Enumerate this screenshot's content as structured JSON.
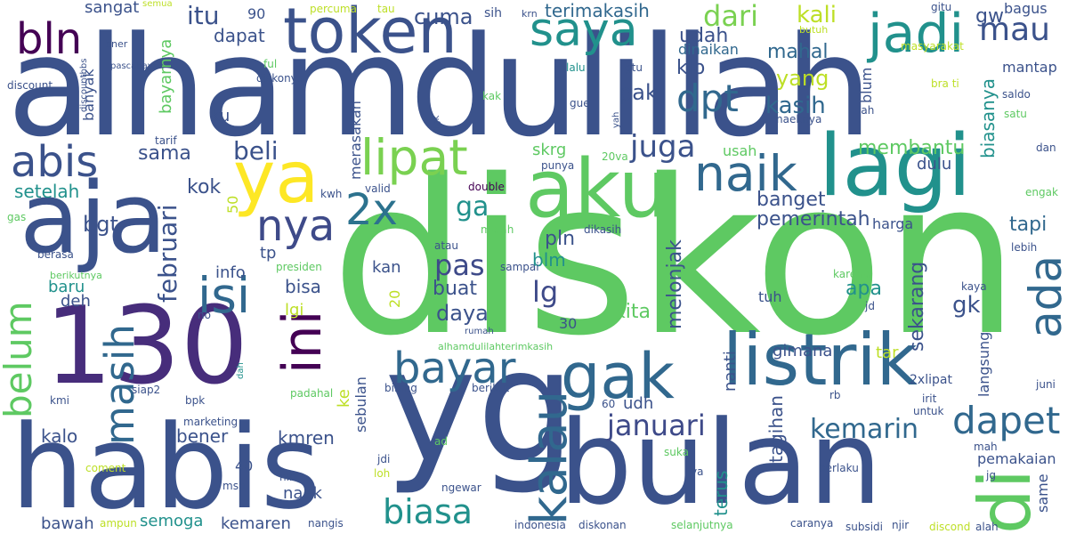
{
  "words": [
    {
      "text": "diskon",
      "color": "#5ec962"
    },
    {
      "text": "alhamdulillah",
      "color": "#3b528b"
    },
    {
      "text": "yg",
      "color": "#3b528b"
    },
    {
      "text": "habis",
      "color": "#3b528b"
    },
    {
      "text": "bulan",
      "color": "#3b528b"
    },
    {
      "text": "130",
      "color": "#472d7b"
    },
    {
      "text": "aja",
      "color": "#3b528b"
    },
    {
      "text": "aku",
      "color": "#5ec962"
    },
    {
      "text": "lagi",
      "color": "#21918c"
    },
    {
      "text": "token",
      "color": "#3b528b"
    },
    {
      "text": "listrik",
      "color": "#31688e"
    },
    {
      "text": "gak",
      "color": "#31688e"
    },
    {
      "text": "ya",
      "color": "#fde725"
    },
    {
      "text": "isi",
      "color": "#31688e"
    },
    {
      "text": "ini",
      "color": "#440154"
    },
    {
      "text": "kalau",
      "color": "#31688e"
    },
    {
      "text": "bayar",
      "color": "#31688e"
    },
    {
      "text": "naik",
      "color": "#31688e"
    },
    {
      "text": "jadi",
      "color": "#21918c"
    },
    {
      "text": "saya",
      "color": "#21918c"
    },
    {
      "text": "lipat",
      "color": "#7ad151"
    },
    {
      "text": "dapet",
      "color": "#31688e"
    },
    {
      "text": "biasa",
      "color": "#21918c"
    },
    {
      "text": "masih",
      "color": "#31688e"
    },
    {
      "text": "belum",
      "color": "#5ec962"
    },
    {
      "text": "di",
      "color": "#5ec962"
    },
    {
      "text": "ada",
      "color": "#31688e"
    },
    {
      "text": "abis",
      "color": "#3b528b"
    },
    {
      "text": "bln",
      "color": "#440154"
    },
    {
      "text": "nya",
      "color": "#3e4a89"
    },
    {
      "text": "2x",
      "color": "#2c728e"
    },
    {
      "text": "dpt",
      "color": "#31688e"
    },
    {
      "text": "januari",
      "color": "#3e4a89"
    },
    {
      "text": "kemarin",
      "color": "#31688e"
    },
    {
      "text": "beli",
      "color": "#3b528b"
    },
    {
      "text": "juga",
      "color": "#3b528b"
    },
    {
      "text": "mau",
      "color": "#3b528b"
    },
    {
      "text": "dari",
      "color": "#7ad151"
    },
    {
      "text": "ga",
      "color": "#21918c"
    },
    {
      "text": "pas",
      "color": "#3e4a89"
    },
    {
      "text": "lg",
      "color": "#3e4a89"
    },
    {
      "text": "februari",
      "color": "#3b528b"
    },
    {
      "text": "cuma",
      "color": "#3b528b"
    },
    {
      "text": "itu",
      "color": "#3b528b"
    },
    {
      "text": "dapat",
      "color": "#3b528b"
    },
    {
      "text": "kali",
      "color": "#bddf26"
    },
    {
      "text": "udah",
      "color": "#3b528b"
    },
    {
      "text": "mahal",
      "color": "#31688e"
    },
    {
      "text": "pak",
      "color": "#3b528b"
    },
    {
      "text": "yang",
      "color": "#bddf26"
    },
    {
      "text": "kasih",
      "color": "#31688e"
    },
    {
      "text": "terimakasih",
      "color": "#31688e"
    },
    {
      "text": "dinaikan",
      "color": "#31688e"
    },
    {
      "text": "klo",
      "color": "#3b528b"
    },
    {
      "text": "membantu",
      "color": "#5ec962"
    },
    {
      "text": "sekarang",
      "color": "#3b528b"
    },
    {
      "text": "melonjak",
      "color": "#3b528b"
    },
    {
      "text": "pemerintah",
      "color": "#3b528b"
    },
    {
      "text": "banget",
      "color": "#3b528b"
    },
    {
      "text": "tapi",
      "color": "#31688e"
    },
    {
      "text": "apa",
      "color": "#21918c"
    },
    {
      "text": "kok",
      "color": "#3b528b"
    },
    {
      "text": "sama",
      "color": "#3b528b"
    },
    {
      "text": "setelah",
      "color": "#21918c"
    },
    {
      "text": "bgt",
      "color": "#3b528b"
    },
    {
      "text": "buat",
      "color": "#3b528b"
    },
    {
      "text": "daya",
      "color": "#3b528b"
    },
    {
      "text": "kita",
      "color": "#5ec962"
    },
    {
      "text": "gk",
      "color": "#3b528b"
    },
    {
      "text": "blm",
      "color": "#21918c"
    },
    {
      "text": "pln",
      "color": "#3b528b"
    },
    {
      "text": "bisa",
      "color": "#3b528b"
    },
    {
      "text": "kan",
      "color": "#3b528b"
    },
    {
      "text": "baru",
      "color": "#21918c"
    },
    {
      "text": "deh",
      "color": "#3b528b"
    },
    {
      "text": "info",
      "color": "#3b528b"
    },
    {
      "text": "tp",
      "color": "#3b528b"
    },
    {
      "text": "lgi",
      "color": "#bddf26"
    },
    {
      "text": "kmren",
      "color": "#3b528b"
    },
    {
      "text": "bener",
      "color": "#3b528b"
    },
    {
      "text": "kalo",
      "color": "#3b528b"
    },
    {
      "text": "semoga",
      "color": "#21918c"
    },
    {
      "text": "kemaren",
      "color": "#3b528b"
    },
    {
      "text": "bawah",
      "color": "#3b528b"
    },
    {
      "text": "naek",
      "color": "#3b528b"
    },
    {
      "text": "udh",
      "color": "#3b528b"
    },
    {
      "text": "terus",
      "color": "#21918c"
    },
    {
      "text": "tagihan",
      "color": "#3b528b"
    },
    {
      "text": "nanti",
      "color": "#3b528b"
    },
    {
      "text": "gimana",
      "color": "#3b528b"
    },
    {
      "text": "tar",
      "color": "#bddf26"
    },
    {
      "text": "langsung",
      "color": "#3b528b"
    },
    {
      "text": "harga",
      "color": "#3b528b"
    },
    {
      "text": "dulu",
      "color": "#3b528b"
    },
    {
      "text": "biasanya",
      "color": "#21918c"
    },
    {
      "text": "blum",
      "color": "#3b528b"
    },
    {
      "text": "gw",
      "color": "#3b528b"
    },
    {
      "text": "mantap",
      "color": "#3b528b"
    },
    {
      "text": "bagus",
      "color": "#3b528b"
    },
    {
      "text": "sangat",
      "color": "#3b528b"
    },
    {
      "text": "banyak",
      "color": "#3b528b"
    },
    {
      "text": "bayarnya",
      "color": "#5ec962"
    },
    {
      "text": "ku",
      "color": "#3b528b"
    },
    {
      "text": "skrg",
      "color": "#5ec962"
    },
    {
      "text": "usah",
      "color": "#5ec962"
    },
    {
      "text": "merasakan",
      "color": "#3b528b"
    },
    {
      "text": "pemakaian",
      "color": "#3b528b"
    },
    {
      "text": "sebulan",
      "color": "#3b528b"
    },
    {
      "text": "ke",
      "color": "#bddf26"
    },
    {
      "text": "tuh",
      "color": "#3b528b"
    },
    {
      "text": "90",
      "color": "#3b528b"
    },
    {
      "text": "50",
      "color": "#bddf26"
    },
    {
      "text": "20",
      "color": "#bddf26"
    },
    {
      "text": "30",
      "color": "#3b528b"
    },
    {
      "text": "40",
      "color": "#3b528b"
    },
    {
      "text": "same",
      "color": "#3b528b"
    },
    {
      "text": "2xlipat",
      "color": "#3b528b"
    },
    {
      "text": "diskonya",
      "color": "#3b528b"
    },
    {
      "text": "diskonan",
      "color": "#3b528b"
    },
    {
      "text": "discount",
      "color": "#3b528b"
    },
    {
      "text": "discountbbs",
      "color": "#3b528b"
    },
    {
      "text": "pascabayar",
      "color": "#3b528b"
    },
    {
      "text": "bner",
      "color": "#3b528b"
    },
    {
      "text": "ful",
      "color": "#5ec962"
    },
    {
      "text": "percuma",
      "color": "#bddf26"
    },
    {
      "text": "semua",
      "color": "#bddf26"
    },
    {
      "text": "tau",
      "color": "#bddf26"
    },
    {
      "text": "krn",
      "color": "#3b528b"
    },
    {
      "text": "sih",
      "color": "#3b528b"
    },
    {
      "text": "gitu",
      "color": "#3b528b"
    },
    {
      "text": "butuh",
      "color": "#bddf26"
    },
    {
      "text": "masyarakat",
      "color": "#bddf26"
    },
    {
      "text": "lalu",
      "color": "#21918c"
    },
    {
      "text": "gtu",
      "color": "#3b528b"
    },
    {
      "text": "bra ti",
      "color": "#bddf26"
    },
    {
      "text": "saldo",
      "color": "#3b528b"
    },
    {
      "text": "satu",
      "color": "#5ec962"
    },
    {
      "text": "lah",
      "color": "#3b528b"
    },
    {
      "text": "kak",
      "color": "#5ec962"
    },
    {
      "text": "gue",
      "color": "#3b528b"
    },
    {
      "text": "naeknya",
      "color": "#3b528b"
    },
    {
      "text": "ngk",
      "color": "#3b528b"
    },
    {
      "text": "yah",
      "color": "#3b528b"
    },
    {
      "text": "tarif",
      "color": "#3b528b"
    },
    {
      "text": "punya",
      "color": "#3b528b"
    },
    {
      "text": "20va",
      "color": "#5ec962"
    },
    {
      "text": "dan",
      "color": "#3b528b"
    },
    {
      "text": "engak",
      "color": "#5ec962"
    },
    {
      "text": "kwh",
      "color": "#3b528b"
    },
    {
      "text": "valid",
      "color": "#3b528b"
    },
    {
      "text": "double",
      "color": "#440154"
    },
    {
      "text": "gas",
      "color": "#5ec962"
    },
    {
      "text": "berasa",
      "color": "#3b528b"
    },
    {
      "text": "atau",
      "color": "#3b528b"
    },
    {
      "text": "malah",
      "color": "#5ec962"
    },
    {
      "text": "dikasih",
      "color": "#3b528b"
    },
    {
      "text": "lebih",
      "color": "#3b528b"
    },
    {
      "text": "berikutnya",
      "color": "#5ec962"
    },
    {
      "text": "presiden",
      "color": "#5ec962"
    },
    {
      "text": "sampai",
      "color": "#3b528b"
    },
    {
      "text": "karena",
      "color": "#5ec962"
    },
    {
      "text": "kaya",
      "color": "#3b528b"
    },
    {
      "text": "jd",
      "color": "#3b528b"
    },
    {
      "text": "no",
      "color": "#3b528b"
    },
    {
      "text": "rumah",
      "color": "#3b528b"
    },
    {
      "text": "alhamdulilahterimkasih",
      "color": "#5ec962"
    },
    {
      "text": "dah",
      "color": "#21918c"
    },
    {
      "text": "kmi",
      "color": "#3b528b"
    },
    {
      "text": "siap2",
      "color": "#3b528b"
    },
    {
      "text": "bpk",
      "color": "#3b528b"
    },
    {
      "text": "padahal",
      "color": "#5ec962"
    },
    {
      "text": "bilang",
      "color": "#3b528b"
    },
    {
      "text": "berikut",
      "color": "#3b528b"
    },
    {
      "text": "60",
      "color": "#3b528b"
    },
    {
      "text": "rb",
      "color": "#3b528b"
    },
    {
      "text": "irit",
      "color": "#3b528b"
    },
    {
      "text": "untuk",
      "color": "#3b528b"
    },
    {
      "text": "juni",
      "color": "#3b528b"
    },
    {
      "text": "marketing",
      "color": "#3b528b"
    },
    {
      "text": "ad",
      "color": "#5ec962"
    },
    {
      "text": "suka",
      "color": "#5ec962"
    },
    {
      "text": "mah",
      "color": "#3b528b"
    },
    {
      "text": "jdi",
      "color": "#3b528b"
    },
    {
      "text": "loh",
      "color": "#bddf26"
    },
    {
      "text": "coment",
      "color": "#bddf26"
    },
    {
      "text": "nih",
      "color": "#3b528b"
    },
    {
      "text": "msh",
      "color": "#3b528b"
    },
    {
      "text": "va",
      "color": "#3b528b"
    },
    {
      "text": "berlaku",
      "color": "#3b528b"
    },
    {
      "text": "jg",
      "color": "#3b528b"
    },
    {
      "text": "ngewar",
      "color": "#3b528b"
    },
    {
      "text": "ampun",
      "color": "#bddf26"
    },
    {
      "text": "nangis",
      "color": "#3b528b"
    },
    {
      "text": "indonesia",
      "color": "#3b528b"
    },
    {
      "text": "selanjutnya",
      "color": "#5ec962"
    },
    {
      "text": "caranya",
      "color": "#3b528b"
    },
    {
      "text": "subsidi",
      "color": "#3b528b"
    },
    {
      "text": "njir",
      "color": "#3b528b"
    },
    {
      "text": "discond",
      "color": "#bddf26"
    },
    {
      "text": "alah",
      "color": "#3b528b"
    }
  ]
}
